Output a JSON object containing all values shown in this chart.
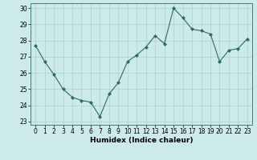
{
  "x": [
    0,
    1,
    2,
    3,
    4,
    5,
    6,
    7,
    8,
    9,
    10,
    11,
    12,
    13,
    14,
    15,
    16,
    17,
    18,
    19,
    20,
    21,
    22,
    23
  ],
  "y": [
    27.7,
    26.7,
    25.9,
    25.0,
    24.5,
    24.3,
    24.2,
    23.3,
    24.7,
    25.4,
    26.7,
    27.1,
    27.6,
    28.3,
    27.8,
    30.0,
    29.4,
    28.7,
    28.6,
    28.4,
    26.7,
    27.4,
    27.5,
    28.1
  ],
  "line_color": "#2e6b5e",
  "marker": "D",
  "marker_size": 2,
  "bg_color": "#cdeaea",
  "grid_color": "#aacfcf",
  "xlabel": "Humidex (Indice chaleur)",
  "ylim": [
    22.8,
    30.3
  ],
  "xlim": [
    -0.5,
    23.5
  ],
  "yticks": [
    23,
    24,
    25,
    26,
    27,
    28,
    29,
    30
  ],
  "xticks": [
    0,
    1,
    2,
    3,
    4,
    5,
    6,
    7,
    8,
    9,
    10,
    11,
    12,
    13,
    14,
    15,
    16,
    17,
    18,
    19,
    20,
    21,
    22,
    23
  ],
  "label_fontsize": 6.5,
  "tick_fontsize": 5.5
}
